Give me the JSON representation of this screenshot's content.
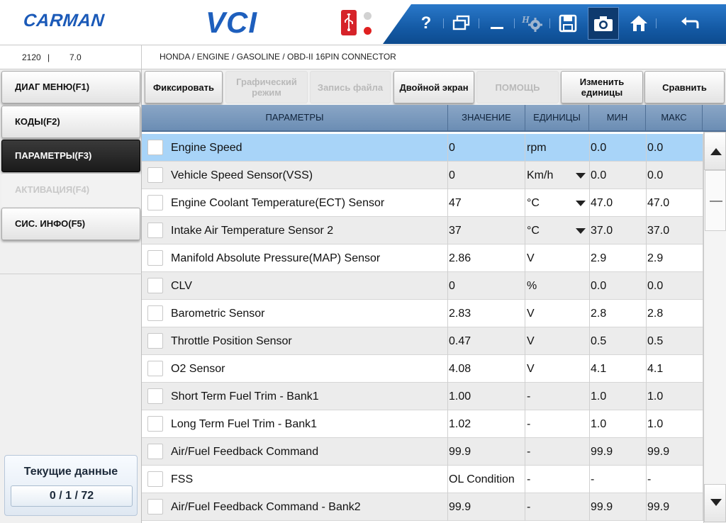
{
  "header": {
    "brand": "CARMAN",
    "product": "VCI",
    "usb_icon": "usb-icon",
    "toolbar": {
      "help_label": "?",
      "icons": [
        "help-icon",
        "window-icon",
        "minimize-icon",
        "settings-icon",
        "save-icon",
        "camera-icon",
        "home-icon",
        "back-icon"
      ]
    }
  },
  "infobar": {
    "code": "2120",
    "separator": "|",
    "version": "7.0",
    "path": "HONDA / ENGINE / GASOLINE / OBD-II 16PIN CONNECTOR"
  },
  "sidebar": {
    "items": [
      {
        "label": "ДИАГ МЕНЮ(F1)",
        "state": "normal"
      },
      {
        "label": "КОДЫ(F2)",
        "state": "normal"
      },
      {
        "label": "ПАРАМЕТРЫ(F3)",
        "state": "active"
      },
      {
        "label": "АКТИВАЦИЯ(F4)",
        "state": "disabled"
      },
      {
        "label": "СИС. ИНФО(F5)",
        "state": "normal"
      }
    ],
    "current": {
      "title": "Текущие данные",
      "count": "0 / 1 / 72"
    }
  },
  "functions": {
    "buttons": [
      {
        "label": "Фиксировать",
        "enabled": true
      },
      {
        "label": "Графический режим",
        "enabled": false
      },
      {
        "label": "Запись файла",
        "enabled": false
      },
      {
        "label": "Двойной экран",
        "enabled": true
      },
      {
        "label": "ПОМОЩЬ",
        "enabled": false
      },
      {
        "label": "Изменить единицы",
        "enabled": true
      },
      {
        "label": "Сравнить",
        "enabled": true
      }
    ]
  },
  "table": {
    "headers": {
      "params": "ПАРАМЕТРЫ",
      "value": "ЗНАЧЕНИЕ",
      "units": "ЕДИНИЦЫ",
      "min": "МИН",
      "max": "МАКС"
    },
    "rows": [
      {
        "name": "Engine Speed",
        "value": "0",
        "unit": "rpm",
        "min": "0.0",
        "max": "0.0",
        "dropdown": false,
        "selected": true
      },
      {
        "name": "Vehicle Speed Sensor(VSS)",
        "value": "0",
        "unit": "Km/h",
        "min": "0.0",
        "max": "0.0",
        "dropdown": true,
        "selected": false
      },
      {
        "name": "Engine Coolant Temperature(ECT) Sensor",
        "value": "47",
        "unit": "°C",
        "min": "47.0",
        "max": "47.0",
        "dropdown": true,
        "selected": false
      },
      {
        "name": "Intake Air Temperature Sensor 2",
        "value": "37",
        "unit": "°C",
        "min": "37.0",
        "max": "37.0",
        "dropdown": true,
        "selected": false
      },
      {
        "name": "Manifold Absolute Pressure(MAP) Sensor",
        "value": "2.86",
        "unit": "V",
        "min": "2.9",
        "max": "2.9",
        "dropdown": false,
        "selected": false
      },
      {
        "name": "CLV",
        "value": "0",
        "unit": "%",
        "min": "0.0",
        "max": "0.0",
        "dropdown": false,
        "selected": false
      },
      {
        "name": "Barometric Sensor",
        "value": "2.83",
        "unit": "V",
        "min": "2.8",
        "max": "2.8",
        "dropdown": false,
        "selected": false
      },
      {
        "name": "Throttle Position Sensor",
        "value": "0.47",
        "unit": "V",
        "min": "0.5",
        "max": "0.5",
        "dropdown": false,
        "selected": false
      },
      {
        "name": "O2 Sensor",
        "value": "4.08",
        "unit": "V",
        "min": "4.1",
        "max": "4.1",
        "dropdown": false,
        "selected": false
      },
      {
        "name": "Short Term Fuel Trim - Bank1",
        "value": "1.00",
        "unit": "-",
        "min": "1.0",
        "max": "1.0",
        "dropdown": false,
        "selected": false
      },
      {
        "name": "Long Term Fuel Trim - Bank1",
        "value": "1.02",
        "unit": "-",
        "min": "1.0",
        "max": "1.0",
        "dropdown": false,
        "selected": false
      },
      {
        "name": "Air/Fuel Feedback Command",
        "value": "99.9",
        "unit": "-",
        "min": "99.9",
        "max": "99.9",
        "dropdown": false,
        "selected": false
      },
      {
        "name": "FSS",
        "value": "OL Condition",
        "unit": "-",
        "min": "-",
        "max": "-",
        "dropdown": false,
        "selected": false
      },
      {
        "name": "Air/Fuel Feedback Command - Bank2",
        "value": "99.9",
        "unit": "-",
        "min": "99.9",
        "max": "99.9",
        "dropdown": false,
        "selected": false
      }
    ]
  },
  "colors": {
    "brand_blue": "#1e5fbd",
    "toolbar_blue": "#145aa5",
    "header_row": "#7b9bc0",
    "selected_row": "#a8d4f8",
    "usb_red": "#d6232a"
  }
}
